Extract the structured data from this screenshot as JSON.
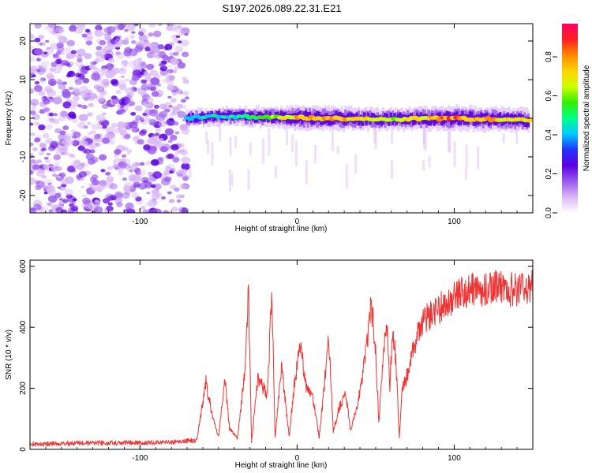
{
  "title": "S197.2026.089.22.31.E21",
  "colors": {
    "series": "#ee3333",
    "spectral": [
      "#ffffff",
      "#d9b8f5",
      "#9b59ee",
      "#5b00e0",
      "#2233ff",
      "#00c8ff",
      "#00ff88",
      "#33ee00",
      "#ccff00",
      "#ffd400",
      "#ff8800",
      "#ff2020",
      "#ff0066"
    ]
  },
  "chart_data": [
    {
      "type": "heatmap",
      "xlabel": "Height of straight line (km)",
      "ylabel": "Frequency (Hz)",
      "xlim": [
        -170,
        150
      ],
      "ylim": [
        -24.5,
        24.5
      ],
      "x_ticks": [
        -100,
        0,
        100
      ],
      "x_tick_labels": [
        "-100",
        "0",
        "100"
      ],
      "y_ticks": [
        -20,
        -10,
        0,
        10,
        20
      ],
      "y_tick_labels": [
        "-20",
        "-10",
        "0",
        "10",
        "20"
      ],
      "noise_region_x": [
        -170,
        -70
      ],
      "ridge": {
        "x_start": -70,
        "x_end": 148,
        "center_freq_hz": [
          [
            -70,
            0
          ],
          [
            -50,
            0.5
          ],
          [
            0,
            0.2
          ],
          [
            50,
            -0.3
          ],
          [
            100,
            0
          ],
          [
            148,
            -0.5
          ]
        ],
        "amplitude": [
          [
            -70,
            0.25
          ],
          [
            -40,
            0.35
          ],
          [
            -10,
            0.6
          ],
          [
            0,
            0.9
          ],
          [
            30,
            0.8
          ],
          [
            50,
            0.6
          ],
          [
            75,
            0.7
          ],
          [
            100,
            0.9
          ],
          [
            148,
            0.75
          ]
        ]
      },
      "colorbar": {
        "label": "Normalized spectral amplitude",
        "range": [
          0,
          0.97
        ],
        "ticks": [
          0,
          0.2,
          0.4,
          0.6,
          0.8
        ],
        "tick_labels": [
          "0.0",
          "0.2",
          "0.4",
          "0.6",
          "0.8"
        ]
      }
    },
    {
      "type": "line",
      "xlabel": "Height of straight line (km)",
      "ylabel": "SNR (10 * v/v)",
      "xlim": [
        -170,
        150
      ],
      "ylim": [
        0,
        620
      ],
      "x_ticks": [
        -100,
        0,
        100
      ],
      "x_tick_labels": [
        "-100",
        "0",
        "100"
      ],
      "y_ticks": [
        0,
        200,
        400,
        600
      ],
      "y_tick_labels": [
        "0",
        "200",
        "400",
        "600"
      ],
      "series": [
        {
          "name": "SNR",
          "points": [
            [
              -170,
              15
            ],
            [
              -140,
              18
            ],
            [
              -110,
              20
            ],
            [
              -80,
              22
            ],
            [
              -64,
              28
            ],
            [
              -58,
              220
            ],
            [
              -54,
              110
            ],
            [
              -50,
              40
            ],
            [
              -46,
              240
            ],
            [
              -43,
              70
            ],
            [
              -38,
              35
            ],
            [
              -33,
              260
            ],
            [
              -31,
              520
            ],
            [
              -29,
              25
            ],
            [
              -25,
              230
            ],
            [
              -19,
              180
            ],
            [
              -16,
              520
            ],
            [
              -14,
              40
            ],
            [
              -10,
              270
            ],
            [
              -5,
              40
            ],
            [
              -2,
              200
            ],
            [
              2,
              340
            ],
            [
              6,
              200
            ],
            [
              10,
              170
            ],
            [
              14,
              40
            ],
            [
              17,
              190
            ],
            [
              20,
              390
            ],
            [
              23,
              60
            ],
            [
              27,
              140
            ],
            [
              31,
              180
            ],
            [
              34,
              60
            ],
            [
              38,
              140
            ],
            [
              42,
              250
            ],
            [
              45,
              360
            ],
            [
              47,
              490
            ],
            [
              50,
              320
            ],
            [
              52,
              90
            ],
            [
              55,
              310
            ],
            [
              57,
              420
            ],
            [
              59,
              200
            ],
            [
              61,
              400
            ],
            [
              63,
              280
            ],
            [
              65,
              40
            ],
            [
              67,
              200
            ],
            [
              70,
              240
            ],
            [
              75,
              350
            ],
            [
              80,
              420
            ],
            [
              90,
              460
            ],
            [
              100,
              500
            ],
            [
              110,
              520
            ],
            [
              120,
              525
            ],
            [
              130,
              530
            ],
            [
              140,
              520
            ],
            [
              148,
              530
            ]
          ]
        }
      ]
    }
  ]
}
